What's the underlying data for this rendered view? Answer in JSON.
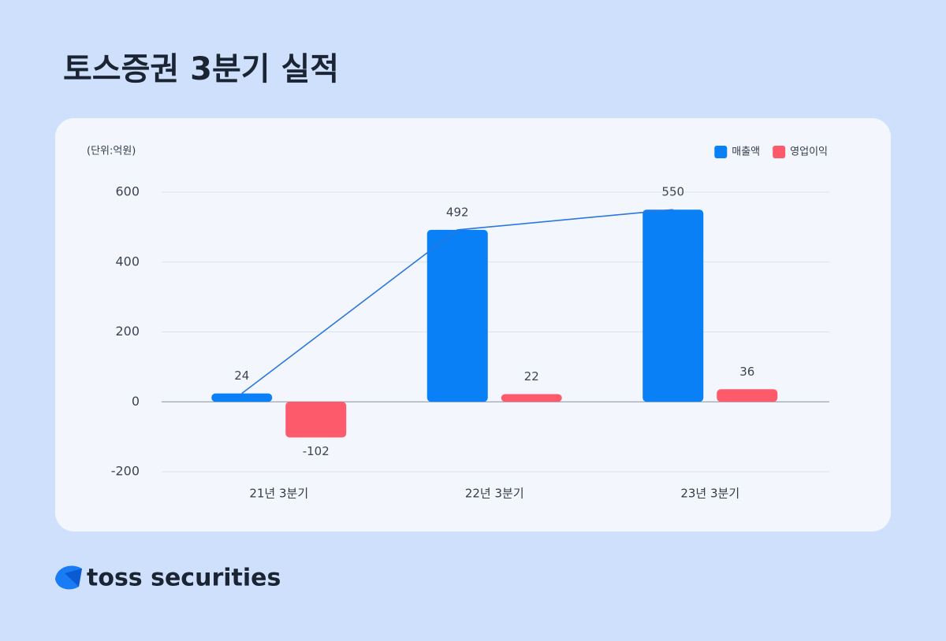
{
  "chart_data": {
    "type": "bar",
    "title": "토스증권 3분기 실적",
    "unit_label": "(단위:억원)",
    "categories": [
      "21년 3분기",
      "22년 3분기",
      "23년 3분기"
    ],
    "series": [
      {
        "name": "매출액",
        "color": "#0a80f6",
        "values": [
          24,
          492,
          550
        ],
        "line": true,
        "line_color": "#2a77e0"
      },
      {
        "name": "영업이익",
        "color": "#fd5a6c",
        "values": [
          -102,
          22,
          36
        ]
      }
    ],
    "ylim": [
      -200,
      600
    ],
    "yticks": [
      -200,
      0,
      200,
      400,
      600
    ],
    "grid": true,
    "legend": "top-right"
  },
  "brand": "toss securities"
}
